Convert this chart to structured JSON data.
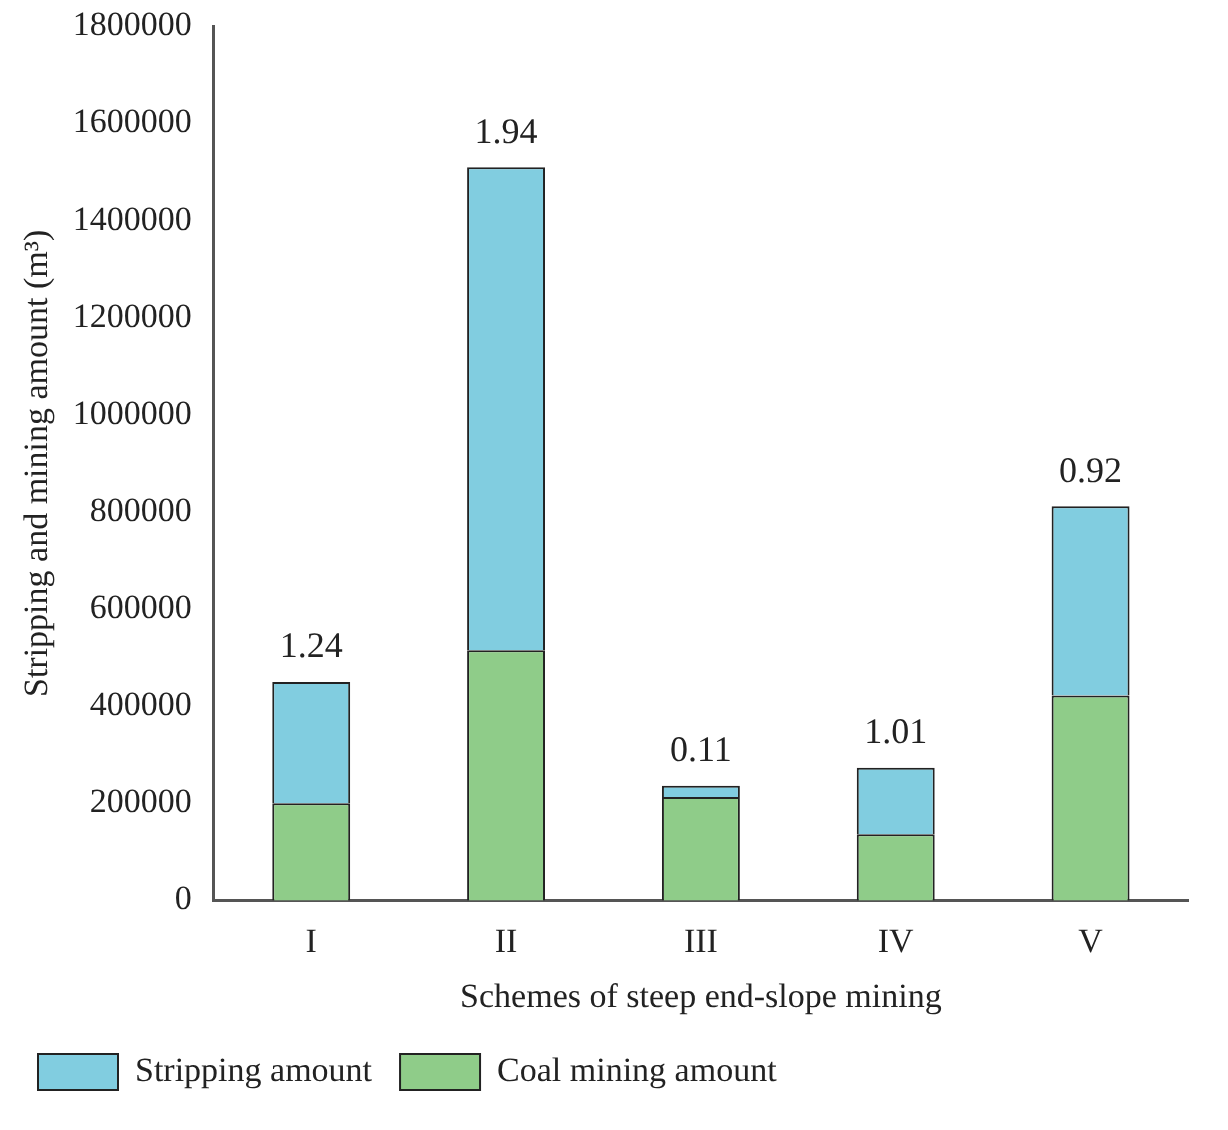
{
  "chart_data": {
    "type": "bar",
    "stacked": true,
    "xlabel": "Schemes of steep end-slope mining",
    "ylabel": "Stripping and mining amount (m³)",
    "categories": [
      "I",
      "II",
      "III",
      "IV",
      "V"
    ],
    "series": [
      {
        "name": "Coal mining amount",
        "color": "#8fcc89",
        "values": [
          200000,
          515000,
          213000,
          136000,
          422000
        ]
      },
      {
        "name": "Stripping amount",
        "color": "#81cde0",
        "values": [
          250000,
          995000,
          23000,
          137000,
          390000
        ]
      }
    ],
    "ylim": [
      0,
      1800000
    ],
    "yticks": [
      0,
      200000,
      400000,
      600000,
      800000,
      1000000,
      1200000,
      1400000,
      1600000,
      1800000
    ],
    "grid": false,
    "legend": "bottom",
    "annotations": [
      {
        "text": "1.24",
        "x": "I",
        "y": 450000
      },
      {
        "text": "1.94",
        "x": "II",
        "y": 1510000
      },
      {
        "text": "0.11",
        "x": "III",
        "y": 236000
      },
      {
        "text": "1.01",
        "x": "IV",
        "y": 273000
      },
      {
        "text": "0.92",
        "x": "V",
        "y": 812000
      }
    ]
  }
}
